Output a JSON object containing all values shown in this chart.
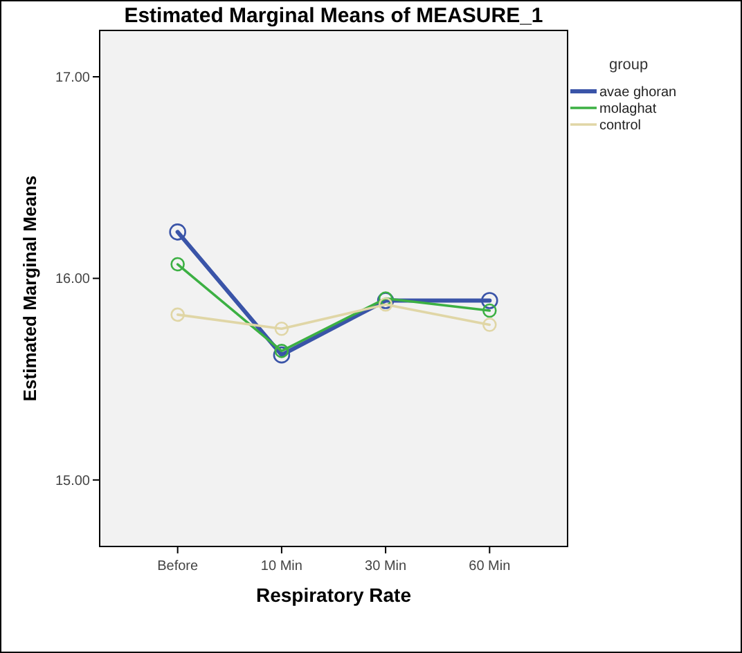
{
  "chart_data": {
    "type": "line",
    "title": "Estimated Marginal Means of MEASURE_1",
    "xlabel": "Respiratory Rate",
    "ylabel": "Estimated Marginal Means",
    "legend_title": "group",
    "categories": [
      "Before",
      "10 Min",
      "30 Min",
      "60 Min"
    ],
    "series": [
      {
        "name": "avae ghoran",
        "color": "#3a54a8",
        "values": [
          16.23,
          15.62,
          15.89,
          15.89
        ]
      },
      {
        "name": "molaghat",
        "color": "#3cb043",
        "values": [
          16.07,
          15.64,
          15.9,
          15.84
        ]
      },
      {
        "name": "control",
        "color": "#e0d6a6",
        "values": [
          15.82,
          15.75,
          15.87,
          15.77
        ]
      }
    ],
    "ylim": [
      14.67,
      17.23
    ],
    "yticks": [
      {
        "value": 15,
        "label": "15.00"
      },
      {
        "value": 16,
        "label": "16.00"
      },
      {
        "value": 17,
        "label": "17.00"
      }
    ],
    "grid": false,
    "legend": "right",
    "marker": "circle",
    "line_style": "solid"
  }
}
